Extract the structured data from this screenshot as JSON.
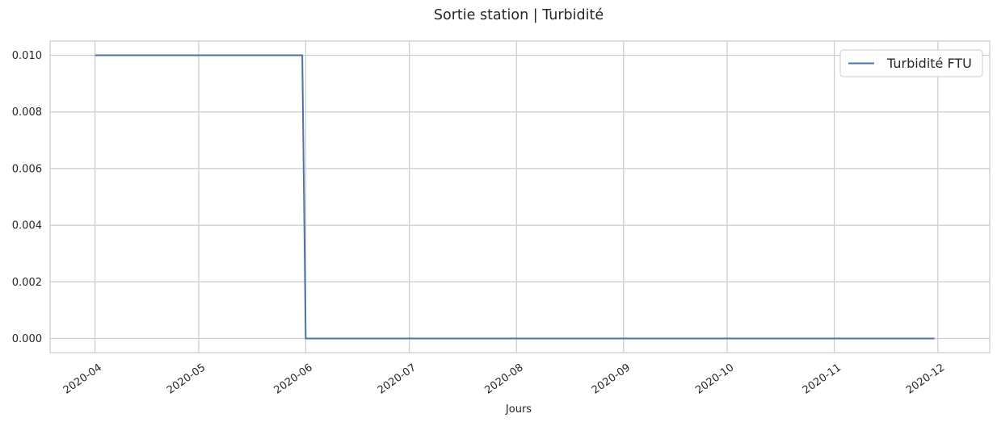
{
  "chart_data": {
    "type": "line",
    "title": "Sortie station | Turbidité",
    "xlabel": "Jours",
    "ylabel": "",
    "x_range": [
      "2020-03-19",
      "2020-12-16"
    ],
    "ylim": [
      -0.0005,
      0.0105
    ],
    "x_ticks": [
      "2020-04",
      "2020-05",
      "2020-06",
      "2020-07",
      "2020-08",
      "2020-09",
      "2020-10",
      "2020-11",
      "2020-12"
    ],
    "x_tick_dates": [
      "2020-04-01",
      "2020-05-01",
      "2020-06-01",
      "2020-07-01",
      "2020-08-01",
      "2020-09-01",
      "2020-10-01",
      "2020-11-01",
      "2020-12-01"
    ],
    "y_ticks": [
      0.0,
      0.002,
      0.004,
      0.006,
      0.008,
      0.01
    ],
    "y_tick_labels": [
      "0.000",
      "0.002",
      "0.004",
      "0.006",
      "0.008",
      "0.010"
    ],
    "grid": true,
    "legend_position": "top-right",
    "series": [
      {
        "name": "Turbidité FTU",
        "color": "#4c72b0",
        "points": [
          {
            "x": "2020-04-01",
            "y": 0.01
          },
          {
            "x": "2020-05-31",
            "y": 0.01
          },
          {
            "x": "2020-06-01",
            "y": 0.0
          },
          {
            "x": "2020-11-30",
            "y": 0.0
          }
        ]
      }
    ]
  }
}
